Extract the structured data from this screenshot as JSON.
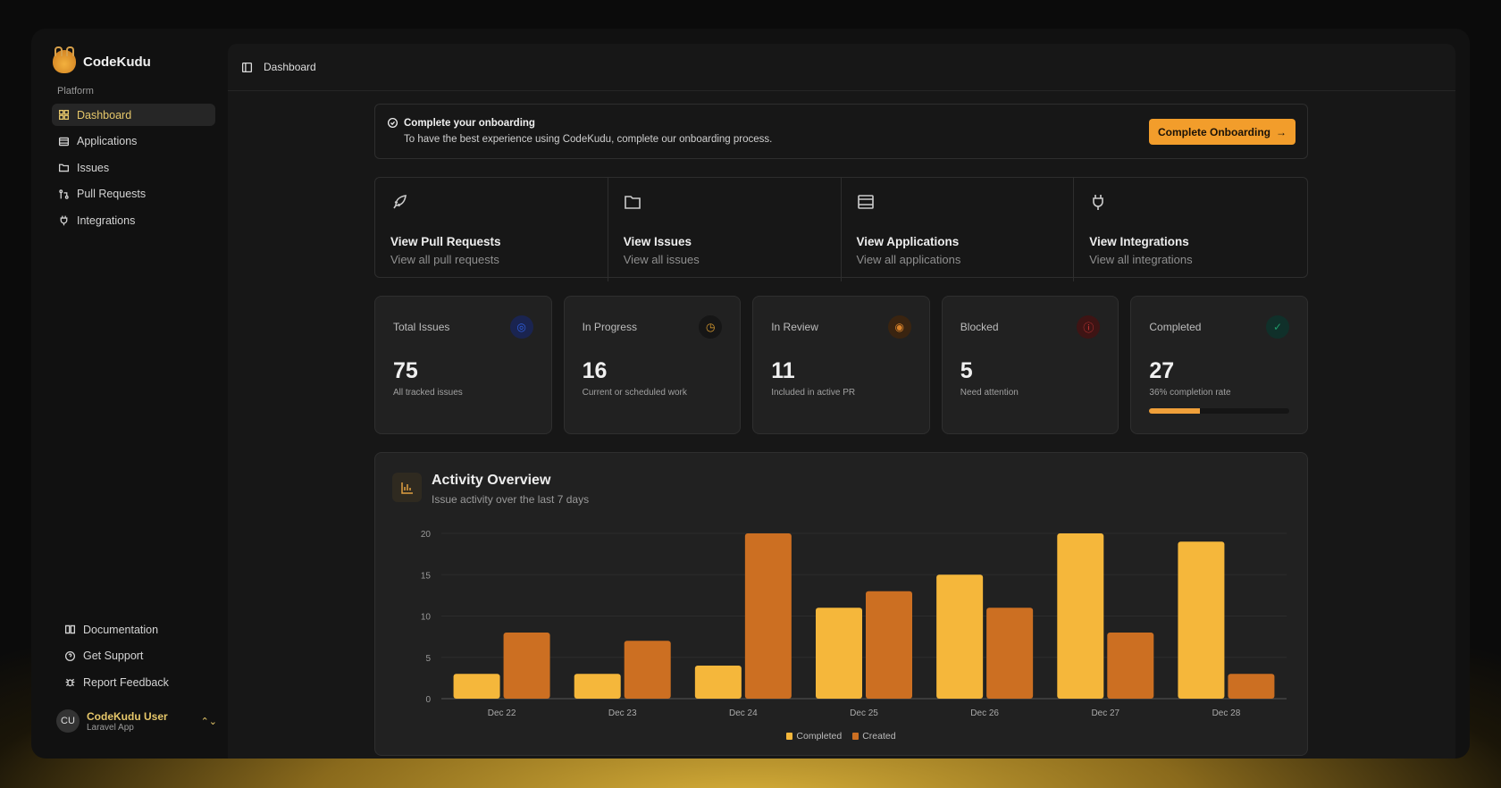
{
  "app": {
    "name": "CodeKudu"
  },
  "sidebar": {
    "section": "Platform",
    "items": [
      {
        "label": "Dashboard",
        "icon": "grid-icon"
      },
      {
        "label": "Applications",
        "icon": "app-window-icon"
      },
      {
        "label": "Issues",
        "icon": "folder-icon"
      },
      {
        "label": "Pull Requests",
        "icon": "git-pull-request-icon"
      },
      {
        "label": "Integrations",
        "icon": "plug-icon"
      }
    ],
    "footer": [
      {
        "label": "Documentation",
        "icon": "book-icon"
      },
      {
        "label": "Get Support",
        "icon": "help-icon"
      },
      {
        "label": "Report Feedback",
        "icon": "bug-icon"
      }
    ],
    "user": {
      "initials": "CU",
      "name": "CodeKudu User",
      "sub": "Laravel App"
    }
  },
  "header": {
    "title": "Dashboard"
  },
  "onboarding": {
    "title": "Complete your onboarding",
    "text": "To have the best experience using CodeKudu, complete our onboarding process.",
    "button": "Complete Onboarding"
  },
  "quick_links": [
    {
      "title": "View Pull Requests",
      "sub": "View all pull requests",
      "icon": "rocket-icon"
    },
    {
      "title": "View Issues",
      "sub": "View all issues",
      "icon": "folder-icon"
    },
    {
      "title": "View Applications",
      "sub": "View all applications",
      "icon": "app-window-icon"
    },
    {
      "title": "View Integrations",
      "sub": "View all integrations",
      "icon": "plug-icon"
    }
  ],
  "stats": [
    {
      "label": "Total Issues",
      "value": "75",
      "sub": "All tracked issues",
      "color": "#2f5fe0"
    },
    {
      "label": "In Progress",
      "value": "16",
      "sub": "Current or scheduled work",
      "color": "#e0a030"
    },
    {
      "label": "In Review",
      "value": "11",
      "sub": "Included in active PR",
      "color": "#d8822a"
    },
    {
      "label": "Blocked",
      "value": "5",
      "sub": "Need attention",
      "color": "#d83a3a"
    },
    {
      "label": "Completed",
      "value": "27",
      "sub": "36% completion rate",
      "color": "#1f9a6a",
      "progress": 36
    }
  ],
  "colors": {
    "accent": "#f29d2b",
    "completed": "#f5b73b",
    "created": "#cc6f22"
  },
  "chart_data": {
    "type": "bar",
    "title": "Activity Overview",
    "subtitle": "Issue activity over the last 7 days",
    "categories": [
      "Dec 22",
      "Dec 23",
      "Dec 24",
      "Dec 25",
      "Dec 26",
      "Dec 27",
      "Dec 28"
    ],
    "series": [
      {
        "name": "Completed",
        "values": [
          3,
          3,
          4,
          11,
          15,
          20,
          19
        ]
      },
      {
        "name": "Created",
        "values": [
          8,
          7,
          20,
          13,
          11,
          8,
          3
        ]
      }
    ],
    "ylim": [
      0,
      20
    ],
    "yticks": [
      "0",
      "5",
      "10",
      "15",
      "20"
    ],
    "grid": true,
    "legend": "bottom"
  }
}
